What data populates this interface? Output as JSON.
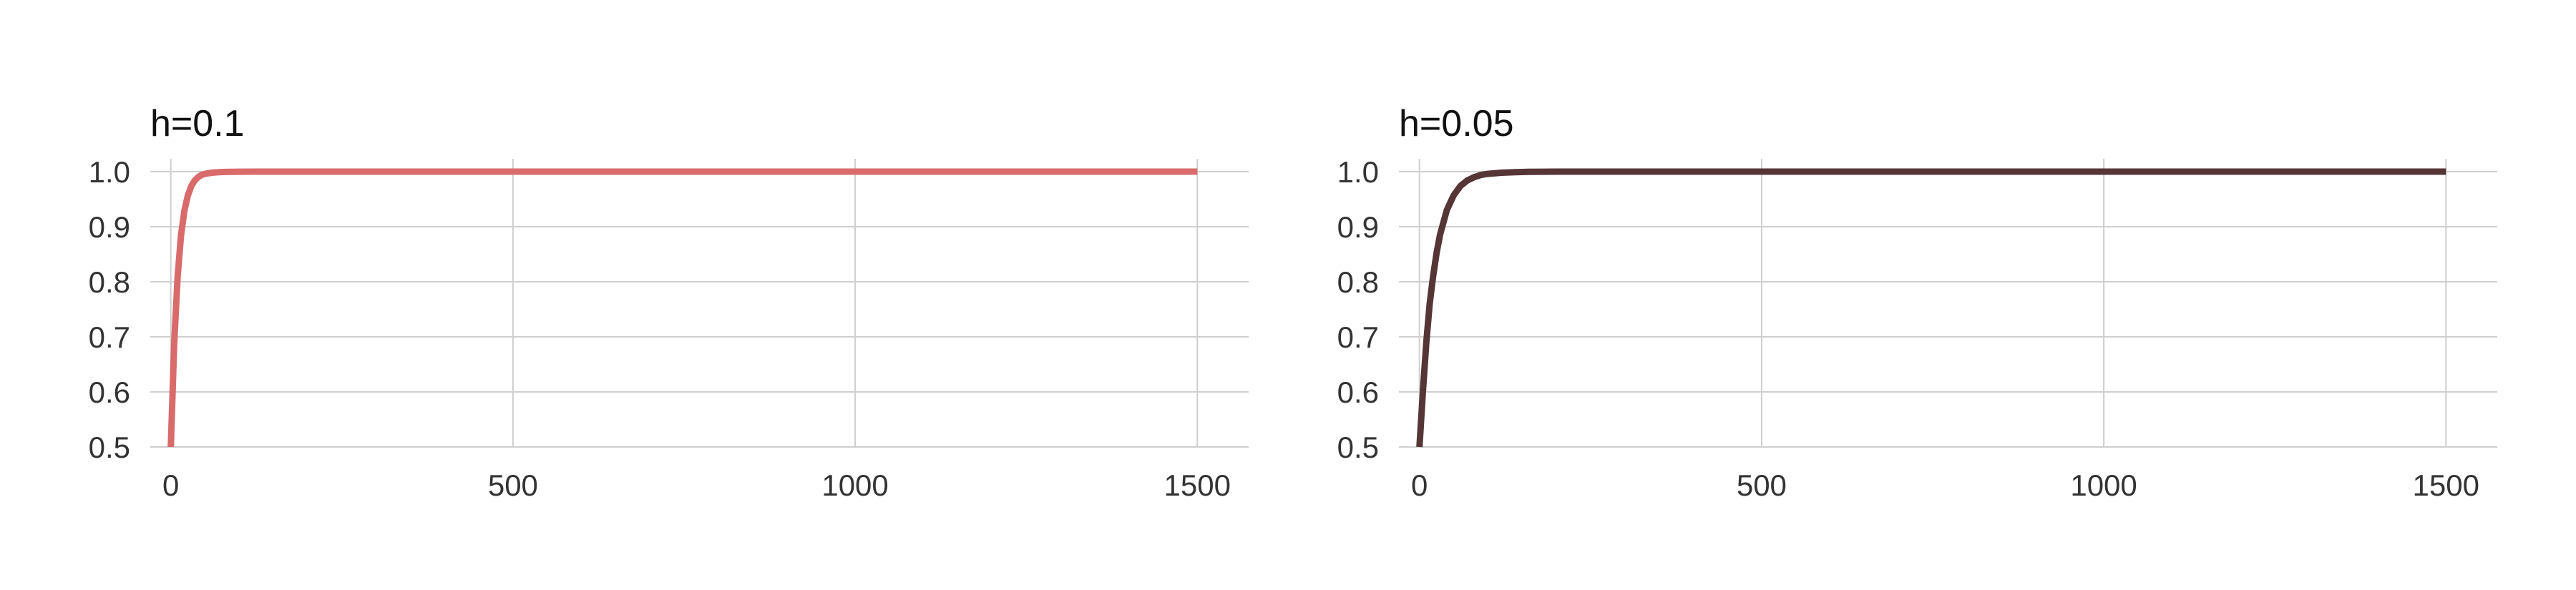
{
  "chart_data": [
    {
      "type": "line",
      "title": "h=0.1",
      "xlabel": "",
      "ylabel": "",
      "xlim": [
        -30,
        1575
      ],
      "ylim": [
        0.5,
        1.0
      ],
      "xticks": [
        0,
        500,
        1000,
        1500
      ],
      "xtick_labels": [
        "0",
        "500",
        "1000",
        "1500"
      ],
      "yticks": [
        0.5,
        0.6,
        0.7,
        0.8,
        0.9,
        1.0
      ],
      "ytick_labels": [
        "0.5",
        "0.6",
        "0.7",
        "0.8",
        "0.9",
        "1.0"
      ],
      "grid": true,
      "series": [
        {
          "color": "#d96b6b",
          "x": [
            0,
            5,
            10,
            15,
            20,
            25,
            30,
            35,
            40,
            45,
            50,
            60,
            70,
            80,
            90,
            100,
            125,
            150,
            200,
            300,
            500,
            750,
            1000,
            1250,
            1500
          ],
          "y": [
            0.5,
            0.69,
            0.81,
            0.885,
            0.93,
            0.957,
            0.974,
            0.984,
            0.99,
            0.994,
            0.996,
            0.998,
            0.999,
            0.9995,
            0.9998,
            0.9999,
            1.0,
            1.0,
            1.0,
            1.0,
            1.0,
            1.0,
            1.0,
            1.0,
            1.0
          ]
        }
      ]
    },
    {
      "type": "line",
      "title": "h=0.05",
      "xlabel": "",
      "ylabel": "",
      "xlim": [
        -30,
        1575
      ],
      "ylim": [
        0.5,
        1.0
      ],
      "xticks": [
        0,
        500,
        1000,
        1500
      ],
      "xtick_labels": [
        "0",
        "500",
        "1000",
        "1500"
      ],
      "yticks": [
        0.5,
        0.6,
        0.7,
        0.8,
        0.9,
        1.0
      ],
      "ytick_labels": [
        "0.5",
        "0.6",
        "0.7",
        "0.8",
        "0.9",
        "1.0"
      ],
      "grid": true,
      "series": [
        {
          "color": "#553535",
          "x": [
            0,
            5,
            10,
            15,
            20,
            25,
            30,
            40,
            50,
            60,
            70,
            80,
            90,
            100,
            120,
            140,
            160,
            200,
            250,
            300,
            500,
            750,
            1000,
            1250,
            1500
          ],
          "y": [
            0.5,
            0.6,
            0.69,
            0.76,
            0.81,
            0.852,
            0.885,
            0.93,
            0.957,
            0.974,
            0.984,
            0.99,
            0.994,
            0.996,
            0.998,
            0.999,
            0.9997,
            1.0,
            1.0,
            1.0,
            1.0,
            1.0,
            1.0,
            1.0,
            1.0
          ]
        }
      ]
    }
  ]
}
